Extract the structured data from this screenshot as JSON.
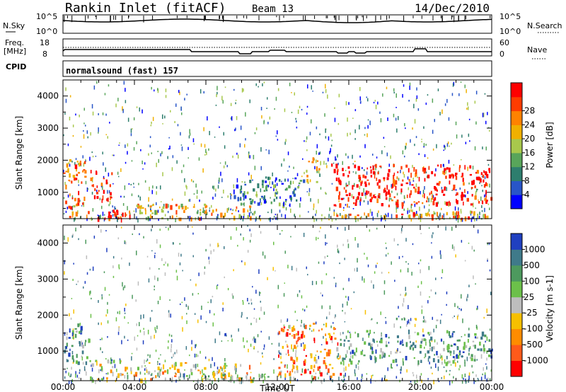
{
  "header": {
    "title": "Rankin Inlet (fitACF)",
    "beam": "Beam 13",
    "date": "14/Dec/2010"
  },
  "strip_labels": {
    "nsky_top": "N.Sky",
    "nsky_tick_hi": "10^5",
    "nsky_tick_lo": "10^0",
    "nsearch_tick_hi": "10^5",
    "nsearch_tick_lo": "10^0",
    "nsearch": "N.Search",
    "freq_l1": "Freq.",
    "freq_l2": "[MHz]",
    "freq_tick_hi": "18",
    "freq_tick_lo": "8",
    "nave_tick_hi": "60",
    "nave_tick_lo": "0",
    "nave": "Nave",
    "cpid": "CPID",
    "cpid_value": "normalsound (fast) 157"
  },
  "chart_data": [
    {
      "type": "heatmap",
      "title": "",
      "xlabel": "",
      "ylabel": "Slant Range [km]",
      "xlim_hours": [
        0,
        24
      ],
      "ylim": [
        180,
        4500
      ],
      "yticks": [
        1000,
        2000,
        3000,
        4000
      ],
      "colorbar": {
        "label": "Power [dB]",
        "ticks": [
          "4",
          "8",
          "12",
          "16",
          "20",
          "24",
          "28"
        ],
        "colors": [
          "#0000ff",
          "#2855c8",
          "#2e7e6e",
          "#58a55a",
          "#a8c84c",
          "#f0b000",
          "#ff8200",
          "#ff3c00",
          "#ff0000"
        ]
      },
      "blocks": [
        {
          "t0": 0.0,
          "t1": 1.2,
          "r0": 250,
          "r1": 2100,
          "level": 0.75
        },
        {
          "t0": 1.5,
          "t1": 2.8,
          "r0": 800,
          "r1": 1700,
          "level": 0.95
        },
        {
          "t0": 0.5,
          "t1": 4.0,
          "r0": 200,
          "r1": 500,
          "level": 0.9
        },
        {
          "t0": 4.0,
          "t1": 10.5,
          "r0": 200,
          "r1": 650,
          "level": 0.6
        },
        {
          "t0": 9.5,
          "t1": 13.5,
          "r0": 600,
          "r1": 1500,
          "level": 0.25
        },
        {
          "t0": 13.5,
          "t1": 14.5,
          "r0": 1300,
          "r1": 2100,
          "level": 0.55
        },
        {
          "t0": 15.0,
          "t1": 24.0,
          "r0": 600,
          "r1": 1900,
          "level": 0.95
        },
        {
          "t0": 15.0,
          "t1": 24.0,
          "r0": 200,
          "r1": 450,
          "level": 0.7
        }
      ]
    },
    {
      "type": "heatmap",
      "title": "",
      "xlabel": "Time UT",
      "ylabel": "Slant Range [km]",
      "xlim_hours": [
        0,
        24
      ],
      "ylim": [
        180,
        4500
      ],
      "yticks": [
        1000,
        2000,
        3000,
        4000
      ],
      "xticks": [
        "00:00",
        "04:00",
        "08:00",
        "12:00",
        "16:00",
        "20:00",
        "00:00"
      ],
      "colorbar": {
        "label": "Velocity [m s-1]",
        "ticks": [
          "1000",
          "500",
          "100",
          "25",
          "-25",
          "-100",
          "-500",
          "-1000"
        ],
        "colors": [
          "#2040c0",
          "#3f7a8a",
          "#4d9a5e",
          "#6cc04a",
          "#bdbdbd",
          "#f7c000",
          "#ff8c00",
          "#ff5a1a",
          "#ff0000"
        ]
      },
      "blocks": [
        {
          "t0": 0.0,
          "t1": 1.5,
          "r0": 700,
          "r1": 1800,
          "level": 0.25
        },
        {
          "t0": 1.5,
          "t1": 4.0,
          "r0": 200,
          "r1": 800,
          "level": 0.55
        },
        {
          "t0": 4.0,
          "t1": 10.5,
          "r0": 200,
          "r1": 700,
          "level": 0.6
        },
        {
          "t0": 8.0,
          "t1": 11.5,
          "r0": 200,
          "r1": 500,
          "level": 0.45
        },
        {
          "t0": 12.0,
          "t1": 15.5,
          "r0": 300,
          "r1": 1800,
          "level": 0.75
        },
        {
          "t0": 15.5,
          "t1": 24.0,
          "r0": 700,
          "r1": 1600,
          "level": 0.3
        },
        {
          "t0": 18.0,
          "t1": 22.0,
          "r0": 1850,
          "r1": 1950,
          "level": 0.45
        }
      ]
    }
  ]
}
